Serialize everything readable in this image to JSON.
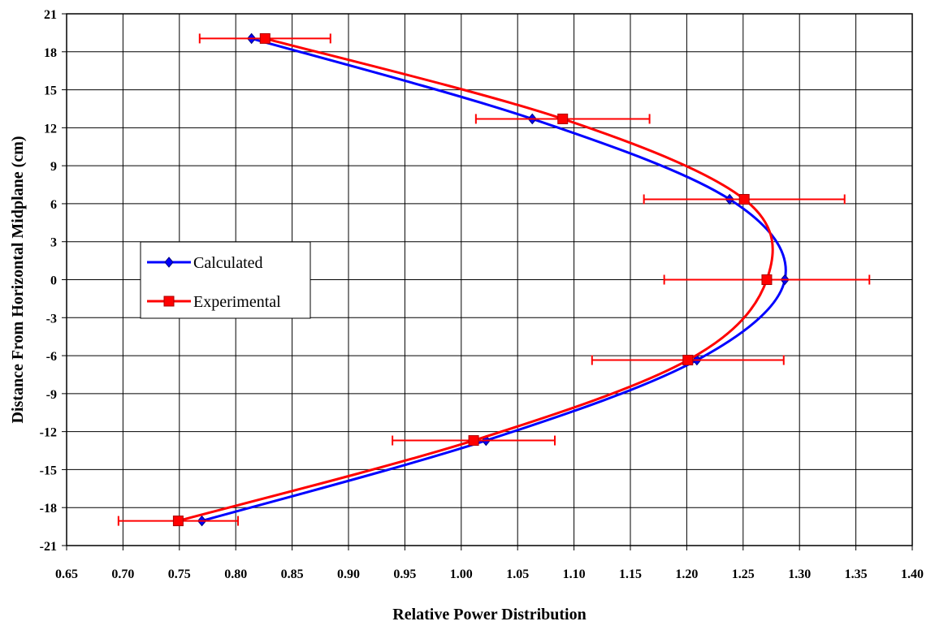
{
  "chart_data": {
    "type": "line",
    "title": "",
    "xlabel": "Relative Power Distribution",
    "ylabel": "Distance From Horizontal Midplane (cm)",
    "xlim": [
      0.65,
      1.4
    ],
    "ylim": [
      -21,
      21
    ],
    "x_ticks": [
      "0.65",
      "0.70",
      "0.75",
      "0.80",
      "0.85",
      "0.90",
      "0.95",
      "1.00",
      "1.05",
      "1.10",
      "1.15",
      "1.20",
      "1.25",
      "1.30",
      "1.35",
      "1.40"
    ],
    "y_ticks": [
      "21",
      "18",
      "15",
      "12",
      "9",
      "6",
      "3",
      "0",
      "-3",
      "-6",
      "-9",
      "-12",
      "-15",
      "-18",
      "-21"
    ],
    "grid": true,
    "legend_position": "left-middle",
    "series": [
      {
        "name": "Calculated",
        "color": "#0000ff",
        "marker": "diamond",
        "points": [
          {
            "x": 0.814,
            "y": 19.05
          },
          {
            "x": 1.063,
            "y": 12.7
          },
          {
            "x": 1.238,
            "y": 6.35
          },
          {
            "x": 1.287,
            "y": 0
          },
          {
            "x": 1.209,
            "y": -6.35
          },
          {
            "x": 1.022,
            "y": -12.7
          },
          {
            "x": 0.77,
            "y": -19.05
          }
        ]
      },
      {
        "name": "Experimental",
        "color": "#ff0000",
        "marker": "square",
        "points": [
          {
            "x": 0.826,
            "y": 19.05,
            "xerr": 0.058
          },
          {
            "x": 1.09,
            "y": 12.7,
            "xerr": 0.077
          },
          {
            "x": 1.251,
            "y": 6.35,
            "xerr": 0.089
          },
          {
            "x": 1.271,
            "y": 0,
            "xerr": 0.091
          },
          {
            "x": 1.201,
            "y": -6.35,
            "xerr": 0.085
          },
          {
            "x": 1.011,
            "y": -12.7,
            "xerr": 0.072
          },
          {
            "x": 0.749,
            "y": -19.05,
            "xerr": 0.053
          }
        ]
      }
    ]
  }
}
